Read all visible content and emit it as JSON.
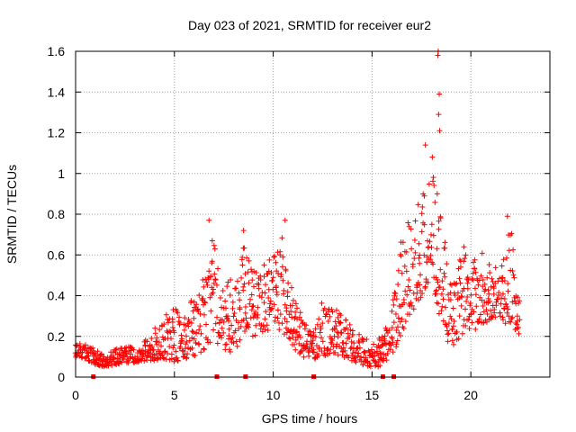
{
  "chart_data": {
    "type": "scatter",
    "title": "Day 023 of 2021, SRMTID for receiver eur2",
    "xlabel": "GPS time / hours",
    "ylabel": "SRMTID / TECUs",
    "xlim": [
      0,
      24
    ],
    "ylim": [
      0,
      1.6
    ],
    "grid": true,
    "marker": "plus",
    "color": "#ff0000",
    "x_ticks": [
      0,
      5,
      10,
      15,
      20
    ],
    "x_tick_labels": [
      "0",
      "5",
      "10",
      "15",
      "20"
    ],
    "y_ticks": [
      0,
      0.2,
      0.4,
      0.6,
      0.8,
      1.0,
      1.2,
      1.4,
      1.6
    ],
    "y_tick_labels": [
      "0",
      "0.2",
      "0.4",
      "0.6",
      "0.8",
      "1",
      "1.2",
      "1.4",
      "1.6"
    ],
    "envelope": {
      "x": [
        0,
        0.5,
        1,
        1.5,
        2,
        2.5,
        3,
        3.5,
        4,
        4.5,
        5,
        5.5,
        6,
        6.5,
        7,
        7.5,
        8,
        8.5,
        9,
        9.5,
        10,
        10.5,
        11,
        11.5,
        12,
        12.5,
        13,
        13.5,
        14,
        14.5,
        15,
        15.5,
        16,
        16.5,
        17,
        17.5,
        18,
        18.5,
        19,
        19.5,
        20,
        20.5,
        21,
        21.5,
        22,
        22.5
      ],
      "low": [
        0.09,
        0.09,
        0.06,
        0.05,
        0.06,
        0.07,
        0.07,
        0.08,
        0.08,
        0.09,
        0.07,
        0.08,
        0.1,
        0.13,
        0.18,
        0.13,
        0.12,
        0.2,
        0.2,
        0.22,
        0.24,
        0.22,
        0.14,
        0.1,
        0.08,
        0.1,
        0.12,
        0.1,
        0.08,
        0.06,
        0.05,
        0.05,
        0.1,
        0.22,
        0.3,
        0.4,
        0.5,
        0.24,
        0.14,
        0.2,
        0.22,
        0.25,
        0.28,
        0.3,
        0.22,
        0.2
      ],
      "high": [
        0.16,
        0.17,
        0.14,
        0.1,
        0.14,
        0.15,
        0.15,
        0.18,
        0.25,
        0.3,
        0.34,
        0.35,
        0.4,
        0.5,
        0.7,
        0.5,
        0.5,
        0.65,
        0.55,
        0.55,
        0.6,
        0.7,
        0.42,
        0.3,
        0.2,
        0.4,
        0.35,
        0.3,
        0.25,
        0.2,
        0.18,
        0.2,
        0.35,
        0.7,
        0.85,
        0.95,
        1.05,
        0.85,
        0.45,
        0.6,
        0.6,
        0.62,
        0.55,
        0.58,
        0.75,
        0.42
      ]
    },
    "outliers": [
      {
        "x": 18.35,
        "y": 1.6
      },
      {
        "x": 18.33,
        "y": 1.58
      },
      {
        "x": 18.4,
        "y": 1.39
      },
      {
        "x": 18.37,
        "y": 1.29
      },
      {
        "x": 18.42,
        "y": 1.21
      },
      {
        "x": 17.7,
        "y": 1.14
      },
      {
        "x": 18.05,
        "y": 1.08
      },
      {
        "x": 6.75,
        "y": 0.77
      },
      {
        "x": 10.6,
        "y": 0.77
      },
      {
        "x": 21.85,
        "y": 0.79
      },
      {
        "x": 8.5,
        "y": 0.72
      },
      {
        "x": 19.65,
        "y": 0.64
      }
    ],
    "gap_markers_x": [
      0.9,
      7.15,
      8.6,
      12.05,
      15.55,
      16.1
    ]
  }
}
